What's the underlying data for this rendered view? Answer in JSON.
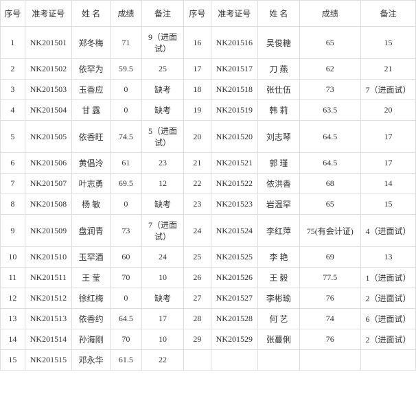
{
  "table": {
    "headers": [
      "序号",
      "准考证号",
      "姓 名",
      "成绩",
      "备注",
      "序号",
      "准考证号",
      "姓 名",
      "成绩",
      "备注"
    ],
    "rows": [
      [
        "1",
        "NK201501",
        "郑冬梅",
        "71",
        "9（进面试）",
        "16",
        "NK201516",
        "吴俊糖",
        "65",
        "15"
      ],
      [
        "2",
        "NK201502",
        "依罕为",
        "59.5",
        "25",
        "17",
        "NK201517",
        "刀 燕",
        "62",
        "21"
      ],
      [
        "3",
        "NK201503",
        "玉香应",
        "0",
        "缺考",
        "18",
        "NK201518",
        "张仕伍",
        "73",
        "7（进面试）"
      ],
      [
        "4",
        "NK201504",
        "甘 露",
        "0",
        "缺考",
        "19",
        "NK201519",
        "韩 莉",
        "63.5",
        "20"
      ],
      [
        "5",
        "NK201505",
        "依香旺",
        "74.5",
        "5（进面试）",
        "20",
        "NK201520",
        "刘志琴",
        "64.5",
        "17"
      ],
      [
        "6",
        "NK201506",
        "黄倡泠",
        "61",
        "23",
        "21",
        "NK201521",
        "郭 瑾",
        "64.5",
        "17"
      ],
      [
        "7",
        "NK201507",
        "叶志勇",
        "69.5",
        "12",
        "22",
        "NK201522",
        "依洪香",
        "68",
        "14"
      ],
      [
        "8",
        "NK201508",
        "杨 敏",
        "0",
        "缺考",
        "23",
        "NK201523",
        "岩温罕",
        "65",
        "15"
      ],
      [
        "9",
        "NK201509",
        "盘润青",
        "73",
        "7（进面试）",
        "24",
        "NK201524",
        "李红萍",
        "75(有会计证)",
        "4（进面试）"
      ],
      [
        "10",
        "NK201510",
        "玉罕酒",
        "60",
        "24",
        "25",
        "NK201525",
        "李 艳",
        "69",
        "13"
      ],
      [
        "11",
        "NK201511",
        "王 莹",
        "70",
        "10",
        "26",
        "NK201526",
        "王 毅",
        "77.5",
        "1（进面试）"
      ],
      [
        "12",
        "NK201512",
        "徐红梅",
        "0",
        "缺考",
        "27",
        "NK201527",
        "李彬瑜",
        "76",
        "2（进面试）"
      ],
      [
        "13",
        "NK201513",
        "依香约",
        "64.5",
        "17",
        "28",
        "NK201528",
        "何 艺",
        "74",
        "6（进面试）"
      ],
      [
        "14",
        "NK201514",
        "孙海刚",
        "70",
        "10",
        "29",
        "NK201529",
        "张蔓俐",
        "76",
        "2（进面试）"
      ],
      [
        "15",
        "NK201515",
        "邓永华",
        "61.5",
        "22",
        "",
        "",
        "",
        "",
        ""
      ]
    ],
    "border_color": "#dddddd",
    "text_color": "#333333",
    "background_color": "#ffffff",
    "font_size": 12
  }
}
